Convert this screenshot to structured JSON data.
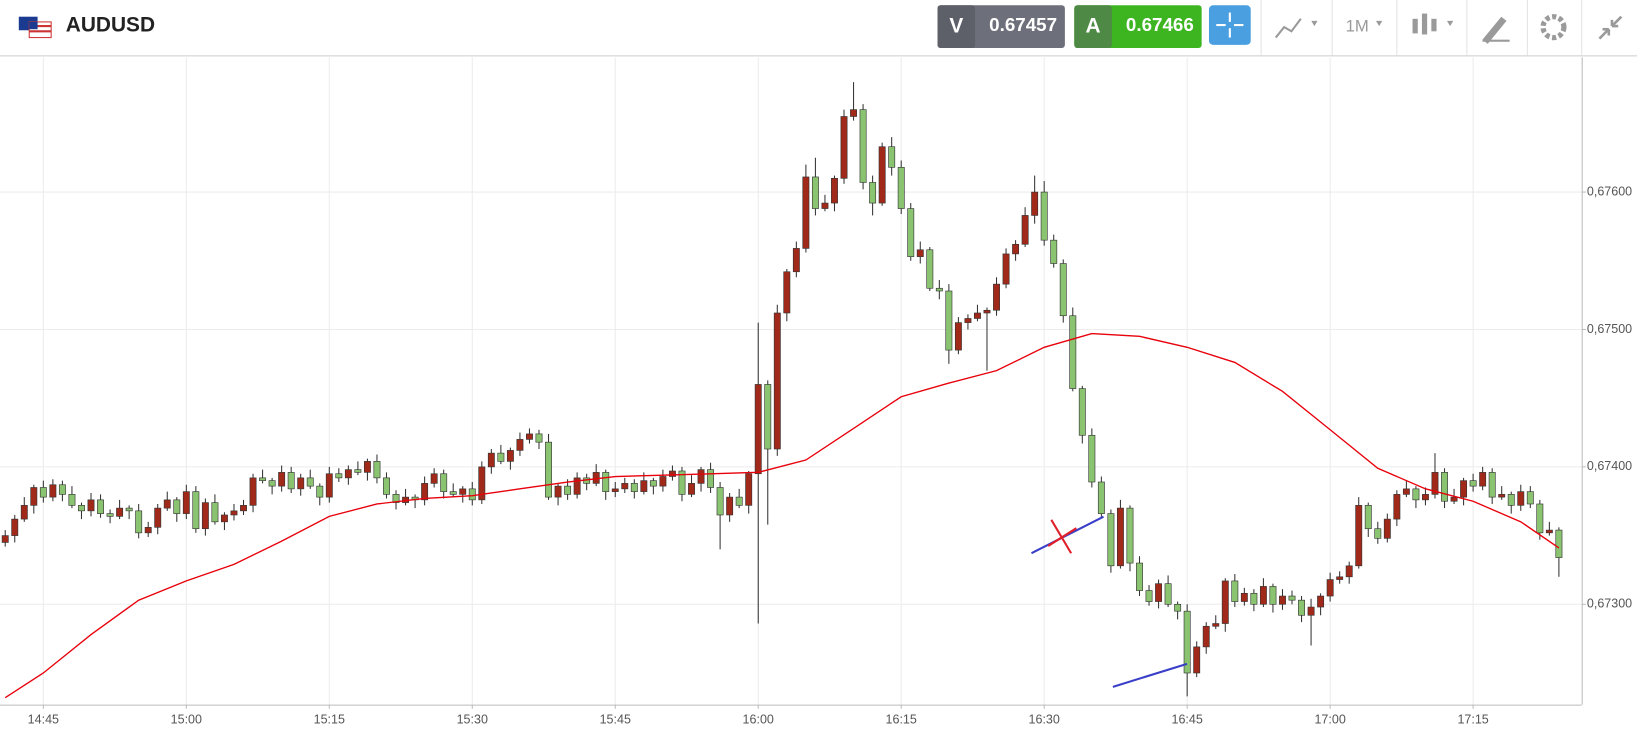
{
  "header": {
    "symbol": "AUDUSD",
    "sell_label": "V",
    "sell_price": "0.67457",
    "buy_label": "A",
    "buy_price": "0.67466",
    "timeframe": "1M"
  },
  "chart_data": {
    "type": "candlestick",
    "up_color": "#a0291a",
    "down_color": "#8bc470",
    "x": [
      "14:41",
      "14:42",
      "14:43",
      "14:44",
      "14:45",
      "14:46",
      "14:47",
      "14:48",
      "14:49",
      "14:50",
      "14:51",
      "14:52",
      "14:53",
      "14:54",
      "14:55",
      "14:56",
      "14:57",
      "14:58",
      "14:59",
      "15:00",
      "15:01",
      "15:02",
      "15:03",
      "15:04",
      "15:05",
      "15:06",
      "15:07",
      "15:08",
      "15:09",
      "15:10",
      "15:11",
      "15:12",
      "15:13",
      "15:14",
      "15:15",
      "15:16",
      "15:17",
      "15:18",
      "15:19",
      "15:20",
      "15:21",
      "15:22",
      "15:23",
      "15:24",
      "15:25",
      "15:26",
      "15:27",
      "15:28",
      "15:29",
      "15:30",
      "15:31",
      "15:32",
      "15:33",
      "15:34",
      "15:35",
      "15:36",
      "15:37",
      "15:38",
      "15:39",
      "15:40",
      "15:41",
      "15:42",
      "15:43",
      "15:44",
      "15:45",
      "15:46",
      "15:47",
      "15:48",
      "15:49",
      "15:50",
      "15:51",
      "15:52",
      "15:53",
      "15:54",
      "15:55",
      "15:56",
      "15:57",
      "15:58",
      "15:59",
      "16:00",
      "16:01",
      "16:02",
      "16:03",
      "16:04",
      "16:05",
      "16:06",
      "16:07",
      "16:08",
      "16:09",
      "16:10",
      "16:11",
      "16:12",
      "16:13",
      "16:14",
      "16:15",
      "16:16",
      "16:17",
      "16:18",
      "16:19",
      "16:20",
      "16:21",
      "16:22",
      "16:23",
      "16:24",
      "16:25",
      "16:26",
      "16:27",
      "16:28",
      "16:29",
      "16:30",
      "16:31",
      "16:32",
      "16:33",
      "16:34",
      "16:35",
      "16:36",
      "16:37",
      "16:38",
      "16:39",
      "16:40",
      "16:41",
      "16:42",
      "16:43",
      "16:44",
      "16:45",
      "16:46",
      "16:47",
      "16:48",
      "16:49",
      "16:50",
      "16:51",
      "16:52",
      "16:53",
      "16:54",
      "16:55",
      "16:56",
      "16:57",
      "16:58",
      "16:59",
      "17:00",
      "17:01",
      "17:02",
      "17:03",
      "17:04",
      "17:05",
      "17:06",
      "17:07",
      "17:08",
      "17:09",
      "17:10",
      "17:11",
      "17:12",
      "17:13",
      "17:14",
      "17:15",
      "17:16",
      "17:17",
      "17:18",
      "17:19",
      "17:20",
      "17:21",
      "17:22",
      "17:23",
      "17:24"
    ],
    "ohlc": [
      [
        0.67345,
        0.67354,
        0.67342,
        0.6735
      ],
      [
        0.6735,
        0.67365,
        0.67345,
        0.67362
      ],
      [
        0.67362,
        0.67378,
        0.6736,
        0.67372
      ],
      [
        0.67372,
        0.67387,
        0.67366,
        0.67385
      ],
      [
        0.67385,
        0.6739,
        0.67374,
        0.67378
      ],
      [
        0.67378,
        0.67391,
        0.67375,
        0.67387
      ],
      [
        0.67387,
        0.6739,
        0.67375,
        0.6738
      ],
      [
        0.6738,
        0.67386,
        0.6737,
        0.67372
      ],
      [
        0.67372,
        0.67374,
        0.67362,
        0.67368
      ],
      [
        0.67368,
        0.67381,
        0.67364,
        0.67376
      ],
      [
        0.67376,
        0.6738,
        0.67363,
        0.67366
      ],
      [
        0.67366,
        0.67369,
        0.67359,
        0.67364
      ],
      [
        0.67364,
        0.67376,
        0.67362,
        0.6737
      ],
      [
        0.6737,
        0.67372,
        0.67362,
        0.67368
      ],
      [
        0.67368,
        0.67373,
        0.67348,
        0.67352
      ],
      [
        0.67352,
        0.6736,
        0.67349,
        0.67356
      ],
      [
        0.67356,
        0.67373,
        0.67351,
        0.6737
      ],
      [
        0.6737,
        0.67382,
        0.67368,
        0.67376
      ],
      [
        0.67376,
        0.67378,
        0.6736,
        0.67366
      ],
      [
        0.67366,
        0.67387,
        0.67362,
        0.67382
      ],
      [
        0.67382,
        0.67386,
        0.67352,
        0.67355
      ],
      [
        0.67355,
        0.67377,
        0.6735,
        0.67374
      ],
      [
        0.67374,
        0.6738,
        0.67358,
        0.6736
      ],
      [
        0.6736,
        0.67367,
        0.67354,
        0.67365
      ],
      [
        0.67365,
        0.67373,
        0.67361,
        0.67368
      ],
      [
        0.67368,
        0.67376,
        0.67365,
        0.67372
      ],
      [
        0.67372,
        0.67395,
        0.67367,
        0.67392
      ],
      [
        0.67392,
        0.67398,
        0.67388,
        0.6739
      ],
      [
        0.6739,
        0.67392,
        0.6738,
        0.67386
      ],
      [
        0.67386,
        0.67401,
        0.67382,
        0.67396
      ],
      [
        0.67396,
        0.674,
        0.67381,
        0.67384
      ],
      [
        0.67384,
        0.67395,
        0.67379,
        0.67392
      ],
      [
        0.67392,
        0.67398,
        0.67384,
        0.67386
      ],
      [
        0.67386,
        0.67388,
        0.67372,
        0.67378
      ],
      [
        0.67378,
        0.674,
        0.67374,
        0.67395
      ],
      [
        0.67395,
        0.67399,
        0.67389,
        0.67392
      ],
      [
        0.67392,
        0.67401,
        0.67387,
        0.67398
      ],
      [
        0.67398,
        0.67404,
        0.67394,
        0.67396
      ],
      [
        0.67396,
        0.67406,
        0.6739,
        0.67404
      ],
      [
        0.67404,
        0.67409,
        0.67388,
        0.67392
      ],
      [
        0.67392,
        0.67396,
        0.67377,
        0.6738
      ],
      [
        0.6738,
        0.67383,
        0.67369,
        0.67374
      ],
      [
        0.67374,
        0.67384,
        0.67372,
        0.67378
      ],
      [
        0.67378,
        0.6738,
        0.6737,
        0.67376
      ],
      [
        0.67376,
        0.67393,
        0.67372,
        0.67388
      ],
      [
        0.67388,
        0.67399,
        0.67385,
        0.67395
      ],
      [
        0.67395,
        0.67398,
        0.67377,
        0.67382
      ],
      [
        0.67382,
        0.67388,
        0.67378,
        0.6738
      ],
      [
        0.6738,
        0.67386,
        0.67374,
        0.67384
      ],
      [
        0.67384,
        0.67389,
        0.67372,
        0.67376
      ],
      [
        0.67376,
        0.67404,
        0.67373,
        0.674
      ],
      [
        0.674,
        0.67413,
        0.67395,
        0.6741
      ],
      [
        0.6741,
        0.67416,
        0.67402,
        0.67404
      ],
      [
        0.67404,
        0.67414,
        0.67398,
        0.67412
      ],
      [
        0.67412,
        0.67425,
        0.67408,
        0.6742
      ],
      [
        0.6742,
        0.67428,
        0.67417,
        0.67424
      ],
      [
        0.67424,
        0.67427,
        0.67413,
        0.67418
      ],
      [
        0.67418,
        0.67424,
        0.67376,
        0.67378
      ],
      [
        0.67378,
        0.67388,
        0.67372,
        0.67386
      ],
      [
        0.67386,
        0.67391,
        0.67376,
        0.6738
      ],
      [
        0.6738,
        0.67396,
        0.67377,
        0.67392
      ],
      [
        0.67392,
        0.67395,
        0.67383,
        0.67388
      ],
      [
        0.67388,
        0.67402,
        0.67386,
        0.67396
      ],
      [
        0.67396,
        0.67398,
        0.67376,
        0.67382
      ],
      [
        0.67382,
        0.67389,
        0.67378,
        0.67384
      ],
      [
        0.67384,
        0.67392,
        0.67381,
        0.67388
      ],
      [
        0.67388,
        0.67391,
        0.67377,
        0.67382
      ],
      [
        0.67382,
        0.67396,
        0.6738,
        0.6739
      ],
      [
        0.6739,
        0.67392,
        0.6738,
        0.67386
      ],
      [
        0.67386,
        0.67398,
        0.67382,
        0.67393
      ],
      [
        0.67393,
        0.67401,
        0.6739,
        0.67397
      ],
      [
        0.67397,
        0.674,
        0.67375,
        0.6738
      ],
      [
        0.6738,
        0.67394,
        0.67378,
        0.67388
      ],
      [
        0.67388,
        0.674,
        0.67382,
        0.67398
      ],
      [
        0.67398,
        0.67403,
        0.67381,
        0.67385
      ],
      [
        0.67385,
        0.67389,
        0.6734,
        0.67365
      ],
      [
        0.67365,
        0.67381,
        0.6736,
        0.67378
      ],
      [
        0.67378,
        0.67384,
        0.6737,
        0.67372
      ],
      [
        0.67372,
        0.67397,
        0.67366,
        0.67395
      ],
      [
        0.67395,
        0.67505,
        0.67286,
        0.6746
      ],
      [
        0.6746,
        0.67463,
        0.67358,
        0.67413
      ],
      [
        0.67413,
        0.67518,
        0.67408,
        0.67512
      ],
      [
        0.67512,
        0.67544,
        0.67506,
        0.67542
      ],
      [
        0.67542,
        0.67564,
        0.67538,
        0.67559
      ],
      [
        0.67559,
        0.6762,
        0.67556,
        0.67611
      ],
      [
        0.67611,
        0.67625,
        0.67583,
        0.67588
      ],
      [
        0.67588,
        0.67598,
        0.67586,
        0.67592
      ],
      [
        0.67592,
        0.67612,
        0.67586,
        0.6761
      ],
      [
        0.6761,
        0.6766,
        0.67606,
        0.67655
      ],
      [
        0.67655,
        0.6768,
        0.67652,
        0.6766
      ],
      [
        0.6766,
        0.67664,
        0.67602,
        0.67607
      ],
      [
        0.67607,
        0.67612,
        0.67583,
        0.67592
      ],
      [
        0.67592,
        0.67636,
        0.6759,
        0.67633
      ],
      [
        0.67633,
        0.6764,
        0.67612,
        0.67618
      ],
      [
        0.67618,
        0.67623,
        0.67584,
        0.67588
      ],
      [
        0.67588,
        0.67592,
        0.6755,
        0.67553
      ],
      [
        0.67553,
        0.67564,
        0.67548,
        0.67558
      ],
      [
        0.67558,
        0.6756,
        0.67528,
        0.6753
      ],
      [
        0.6753,
        0.67536,
        0.67522,
        0.67528
      ],
      [
        0.67528,
        0.67533,
        0.67475,
        0.67485
      ],
      [
        0.67485,
        0.67509,
        0.67482,
        0.67505
      ],
      [
        0.67505,
        0.67511,
        0.675,
        0.67508
      ],
      [
        0.67508,
        0.67518,
        0.67506,
        0.67512
      ],
      [
        0.67512,
        0.67516,
        0.6747,
        0.67514
      ],
      [
        0.67514,
        0.67538,
        0.6751,
        0.67533
      ],
      [
        0.67533,
        0.67559,
        0.6753,
        0.67555
      ],
      [
        0.67555,
        0.67565,
        0.6755,
        0.67562
      ],
      [
        0.67562,
        0.67589,
        0.6756,
        0.67583
      ],
      [
        0.67583,
        0.67612,
        0.67577,
        0.676
      ],
      [
        0.676,
        0.67608,
        0.67561,
        0.67565
      ],
      [
        0.67565,
        0.67569,
        0.67545,
        0.67548
      ],
      [
        0.67548,
        0.67551,
        0.67505,
        0.6751
      ],
      [
        0.6751,
        0.67516,
        0.67455,
        0.67457
      ],
      [
        0.67457,
        0.67459,
        0.67417,
        0.67423
      ],
      [
        0.67423,
        0.67428,
        0.67385,
        0.67389
      ],
      [
        0.67389,
        0.67393,
        0.67363,
        0.67366
      ],
      [
        0.67366,
        0.67369,
        0.67323,
        0.67328
      ],
      [
        0.67328,
        0.67376,
        0.67326,
        0.6737
      ],
      [
        0.6737,
        0.67372,
        0.67324,
        0.6733
      ],
      [
        0.6733,
        0.67335,
        0.67306,
        0.6731
      ],
      [
        0.6731,
        0.67314,
        0.67299,
        0.67302
      ],
      [
        0.67302,
        0.67318,
        0.67297,
        0.67315
      ],
      [
        0.67315,
        0.67321,
        0.67298,
        0.673
      ],
      [
        0.673,
        0.67302,
        0.67289,
        0.67295
      ],
      [
        0.67295,
        0.673,
        0.67233,
        0.6725
      ],
      [
        0.6725,
        0.67273,
        0.67247,
        0.67269
      ],
      [
        0.67269,
        0.67287,
        0.67264,
        0.67284
      ],
      [
        0.67284,
        0.67292,
        0.67282,
        0.67286
      ],
      [
        0.67286,
        0.67319,
        0.6728,
        0.67317
      ],
      [
        0.67317,
        0.67322,
        0.67298,
        0.67302
      ],
      [
        0.67302,
        0.67312,
        0.67299,
        0.67308
      ],
      [
        0.67308,
        0.67311,
        0.67295,
        0.673
      ],
      [
        0.673,
        0.67319,
        0.67298,
        0.67313
      ],
      [
        0.67313,
        0.67315,
        0.67294,
        0.673
      ],
      [
        0.673,
        0.67311,
        0.67296,
        0.67306
      ],
      [
        0.67306,
        0.6731,
        0.673,
        0.67303
      ],
      [
        0.67303,
        0.67306,
        0.67287,
        0.67292
      ],
      [
        0.67292,
        0.67304,
        0.6727,
        0.67298
      ],
      [
        0.67298,
        0.67308,
        0.67292,
        0.67306
      ],
      [
        0.67306,
        0.67323,
        0.67302,
        0.67318
      ],
      [
        0.67318,
        0.67324,
        0.67315,
        0.6732
      ],
      [
        0.6732,
        0.67331,
        0.67315,
        0.67328
      ],
      [
        0.67328,
        0.67378,
        0.67326,
        0.67372
      ],
      [
        0.67372,
        0.67374,
        0.67349,
        0.67355
      ],
      [
        0.67355,
        0.6736,
        0.67344,
        0.67348
      ],
      [
        0.67348,
        0.67366,
        0.67345,
        0.67362
      ],
      [
        0.67362,
        0.67383,
        0.67357,
        0.6738
      ],
      [
        0.6738,
        0.6739,
        0.67378,
        0.67384
      ],
      [
        0.67384,
        0.67386,
        0.6737,
        0.67376
      ],
      [
        0.67376,
        0.67385,
        0.67372,
        0.6738
      ],
      [
        0.6738,
        0.6741,
        0.67377,
        0.67396
      ],
      [
        0.67396,
        0.67399,
        0.6737,
        0.67375
      ],
      [
        0.67375,
        0.67384,
        0.67373,
        0.67378
      ],
      [
        0.67378,
        0.67392,
        0.67372,
        0.6739
      ],
      [
        0.6739,
        0.67395,
        0.67382,
        0.67386
      ],
      [
        0.67386,
        0.674,
        0.67383,
        0.67396
      ],
      [
        0.67396,
        0.67399,
        0.67373,
        0.67378
      ],
      [
        0.67378,
        0.67386,
        0.67376,
        0.6738
      ],
      [
        0.6738,
        0.67382,
        0.67366,
        0.67372
      ],
      [
        0.67372,
        0.67387,
        0.67368,
        0.67382
      ],
      [
        0.67382,
        0.67386,
        0.6737,
        0.67373
      ],
      [
        0.67373,
        0.67376,
        0.67347,
        0.67352
      ],
      [
        0.67352,
        0.6736,
        0.6735,
        0.67354
      ],
      [
        0.67354,
        0.67356,
        0.6732,
        0.67334
      ]
    ],
    "ma": {
      "color": "#e8000b",
      "x": [
        "14:41",
        "14:45",
        "14:50",
        "14:55",
        "15:00",
        "15:05",
        "15:10",
        "15:15",
        "15:20",
        "15:25",
        "15:30",
        "15:35",
        "15:40",
        "15:45",
        "15:50",
        "15:55",
        "16:00",
        "16:05",
        "16:10",
        "16:15",
        "16:20",
        "16:25",
        "16:30",
        "16:35",
        "16:40",
        "16:45",
        "16:50",
        "16:55",
        "17:00",
        "17:05",
        "17:10",
        "17:15",
        "17:20",
        "17:24"
      ],
      "values": [
        0.67232,
        0.6725,
        0.67278,
        0.67303,
        0.67317,
        0.67329,
        0.67346,
        0.67364,
        0.67373,
        0.67377,
        0.67379,
        0.67384,
        0.67389,
        0.67393,
        0.67394,
        0.67395,
        0.67396,
        0.67405,
        0.67428,
        0.67451,
        0.67461,
        0.6747,
        0.67487,
        0.67497,
        0.67495,
        0.67487,
        0.67476,
        0.67455,
        0.67427,
        0.67399,
        0.67384,
        0.67375,
        0.6736,
        0.67341
      ]
    },
    "ylim": [
      0.67227,
      0.67698
    ],
    "yticks": [
      {
        "value": 0.673,
        "label": "0,67300"
      },
      {
        "value": 0.674,
        "label": "0,67400"
      },
      {
        "value": 0.675,
        "label": "0,67500"
      },
      {
        "value": 0.676,
        "label": "0,67600"
      }
    ],
    "xticks": [
      "14:45",
      "15:00",
      "15:15",
      "15:30",
      "15:45",
      "16:00",
      "16:15",
      "16:30",
      "16:45",
      "17:00",
      "17:15"
    ],
    "grid": true
  }
}
